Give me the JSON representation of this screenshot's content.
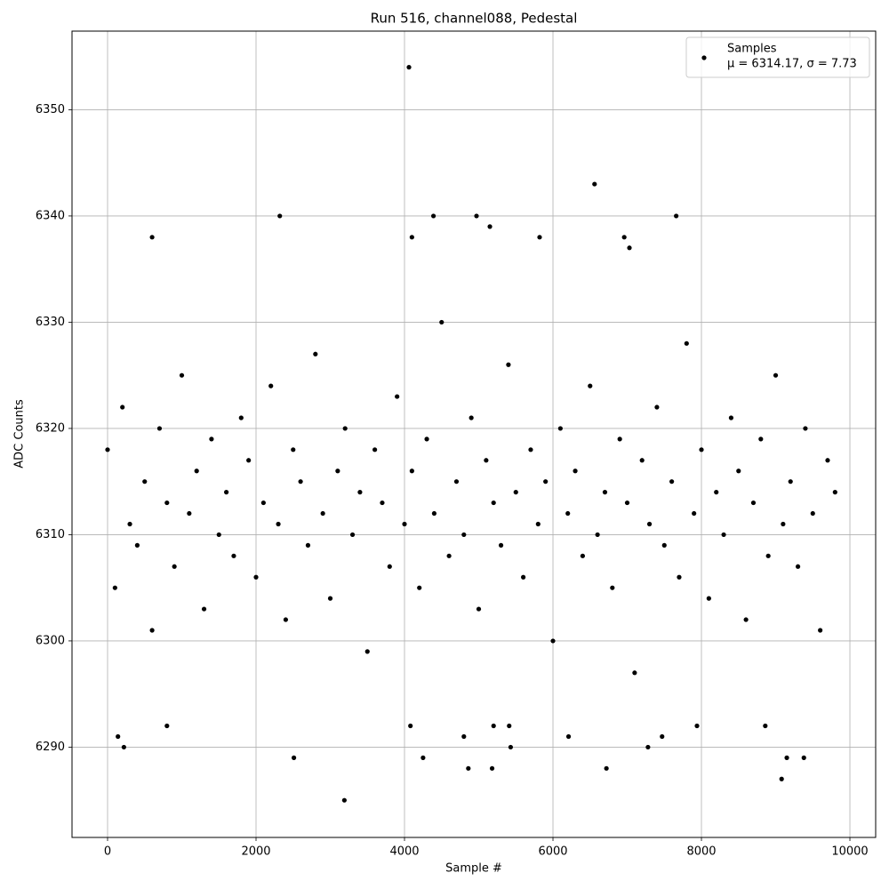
{
  "chart_data": {
    "type": "scatter",
    "title": "Run 516, channel088, Pedestal",
    "x_label": "Sample #",
    "y_label": "ADC Counts",
    "legend_note": "μ = 6314.17, σ = 7.73",
    "legend_position": "upper right",
    "grid": true,
    "xlim": [
      -479,
      10347
    ],
    "ylim": [
      6281.5,
      6357.4
    ],
    "xticks": [
      0,
      2000,
      4000,
      6000,
      8000,
      10000
    ],
    "yticks": [
      6290,
      6300,
      6310,
      6320,
      6330,
      6340,
      6350
    ],
    "x": [
      0,
      100,
      200,
      300,
      400,
      500,
      600,
      700,
      800,
      900,
      1000,
      1100,
      1200,
      1300,
      1400,
      1500,
      1600,
      1700,
      1800,
      1900,
      2000,
      2100,
      2200,
      2300,
      2400,
      2500,
      2600,
      2700,
      2800,
      2900,
      3000,
      3100,
      3200,
      3300,
      3400,
      3500,
      3600,
      3700,
      3800,
      3900,
      4000,
      4100,
      4200,
      4300,
      4400,
      4500,
      4600,
      4700,
      4800,
      4900,
      5000,
      5100,
      5200,
      5300,
      5400,
      5500,
      5600,
      5700,
      5800,
      5900,
      6000,
      6100,
      6200,
      6300,
      6400,
      6500,
      6600,
      6700,
      6800,
      6900,
      7000,
      7100,
      7200,
      7300,
      7400,
      7500,
      7600,
      7700,
      7800,
      7900,
      8000,
      8100,
      8200,
      8300,
      8400,
      8500,
      8600,
      8700,
      8800,
      8900,
      9000,
      9100,
      9200,
      9300,
      9400,
      9500,
      9600,
      9700,
      9800,
      4060,
      6560,
      2320,
      4390,
      4970,
      7660,
      3190,
      9080,
      2510,
      4250,
      9150,
      9380,
      220,
      5430,
      7280,
      6720,
      4860,
      5180,
      600,
      4100,
      5820,
      6960,
      5150,
      7030,
      800,
      4080,
      5200,
      5410,
      7940,
      8860,
      140,
      4800,
      6210,
      7470
    ],
    "series": [
      {
        "name": "Samples",
        "color": "#000000",
        "values": [
          6318,
          6305,
          6322,
          6311,
          6309,
          6315,
          6301,
          6320,
          6313,
          6307,
          6325,
          6312,
          6316,
          6303,
          6319,
          6310,
          6314,
          6308,
          6321,
          6317,
          6306,
          6313,
          6324,
          6311,
          6302,
          6318,
          6315,
          6309,
          6327,
          6312,
          6304,
          6316,
          6320,
          6310,
          6314,
          6299,
          6318,
          6313,
          6307,
          6323,
          6311,
          6316,
          6305,
          6319,
          6312,
          6330,
          6308,
          6315,
          6310,
          6321,
          6303,
          6317,
          6313,
          6309,
          6326,
          6314,
          6306,
          6318,
          6311,
          6315,
          6300,
          6320,
          6312,
          6316,
          6308,
          6324,
          6310,
          6314,
          6305,
          6319,
          6313,
          6297,
          6317,
          6311,
          6322,
          6309,
          6315,
          6306,
          6328,
          6312,
          6318,
          6304,
          6314,
          6310,
          6321,
          6316,
          6302,
          6313,
          6319,
          6308,
          6325,
          6311,
          6315,
          6307,
          6320,
          6312,
          6301,
          6317,
          6314,
          6354,
          6343,
          6340,
          6340,
          6340,
          6340,
          6285,
          6287,
          6289,
          6289,
          6289,
          6289,
          6290,
          6290,
          6290,
          6288,
          6288,
          6288,
          6338,
          6338,
          6338,
          6338,
          6339,
          6337,
          6292,
          6292,
          6292,
          6292,
          6292,
          6292,
          6291,
          6291,
          6291,
          6291
        ]
      }
    ]
  }
}
